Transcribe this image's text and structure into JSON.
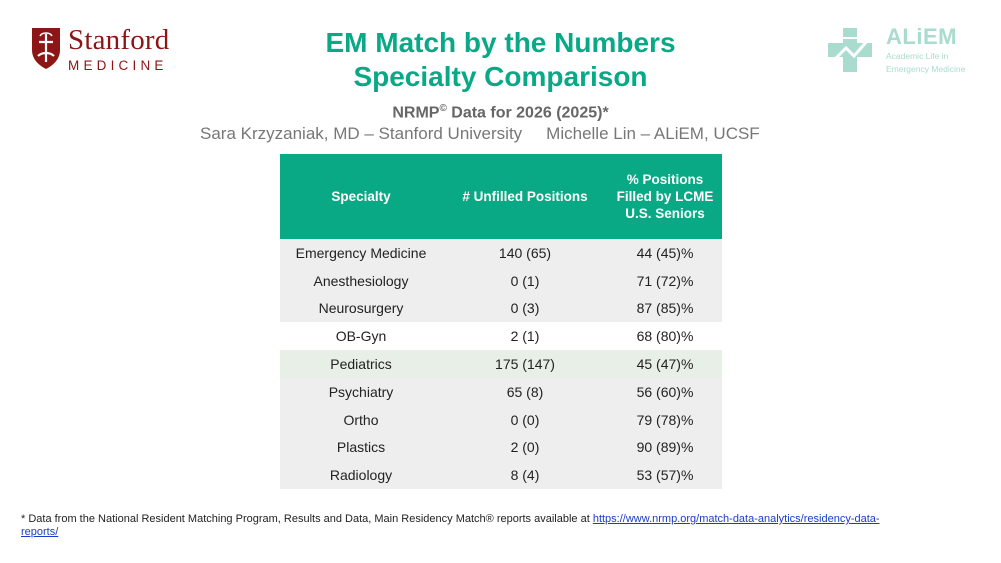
{
  "logos": {
    "stanford": {
      "name": "Stanford",
      "sub": "MEDICINE",
      "color": "#8c1515",
      "icon": "stanford-seal-icon"
    },
    "aliem": {
      "name": "ALiEM",
      "tagline_1": "Academic Life in",
      "tagline_2": "Emergency Medicine",
      "color": "#a9dccf",
      "icon": "aliem-cross-icon"
    }
  },
  "header": {
    "title_1": "EM Match by the Numbers",
    "title_2": "Specialty Comparison",
    "subtitle_pre": "NRMP",
    "subtitle_mark": "©",
    "subtitle_post": " Data for 2026 (2025)*",
    "author_1": "Sara Krzyzaniak, MD – Stanford University",
    "author_2": "Michelle Lin – ALiEM, UCSF"
  },
  "table": {
    "header_color": "#0aa985",
    "columns": [
      "Specialty",
      "# Unfilled Positions",
      "% Positions Filled by LCME U.S. Seniors"
    ],
    "rows": [
      [
        "Emergency Medicine",
        "140 (65)",
        "44 (45)%"
      ],
      [
        "Anesthesiology",
        "0 (1)",
        "71 (72)%"
      ],
      [
        "Neurosurgery",
        "0 (3)",
        "87 (85)%"
      ],
      [
        "OB-Gyn",
        "2 (1)",
        "68 (80)%"
      ],
      [
        "Pediatrics",
        "175 (147)",
        "45 (47)%"
      ],
      [
        "Psychiatry",
        "65 (8)",
        "56 (60)%"
      ],
      [
        "Ortho",
        "0 (0)",
        "79 (78)%"
      ],
      [
        "Plastics",
        "2 (0)",
        "90 (89)%"
      ],
      [
        "Radiology",
        "8 (4)",
        "53 (57)%"
      ]
    ]
  },
  "footnote": {
    "text": "* Data from the National Resident Matching Program, Results and Data, Main Residency Match® reports available at ",
    "link": "https://www.nrmp.org/match-data-analytics/residency-data-reports/"
  }
}
